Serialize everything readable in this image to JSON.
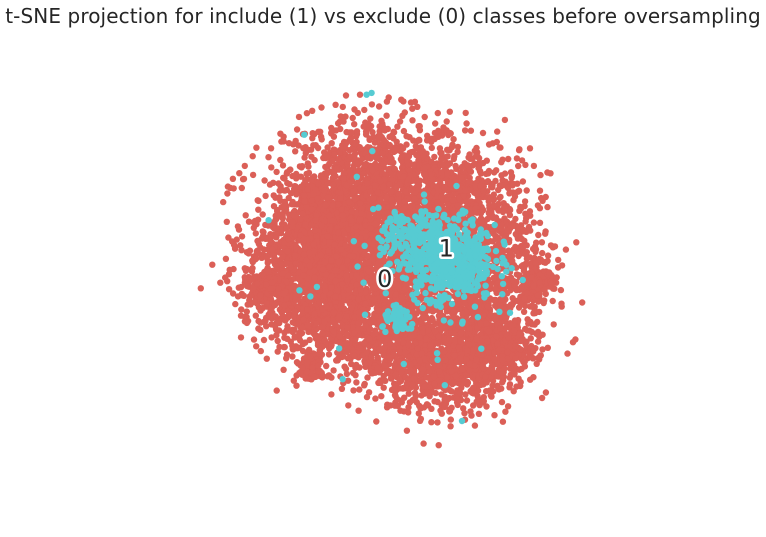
{
  "chart_data": {
    "type": "scatter",
    "title": "t-SNE projection for include (1) vs exclude (0) classes before oversampling",
    "xlabel": "",
    "ylabel": "",
    "axes_visible": false,
    "grid": false,
    "xlim": [
      -100,
      100
    ],
    "ylim": [
      -100,
      100
    ],
    "series": [
      {
        "label": "0",
        "color": "#db5f57",
        "clusters": [
          {
            "cx": -10,
            "cy": 45,
            "sx": 22,
            "sy": 18,
            "n": 1100
          },
          {
            "cx": -35,
            "cy": 20,
            "sx": 18,
            "sy": 16,
            "n": 900
          },
          {
            "cx": -45,
            "cy": -5,
            "sx": 15,
            "sy": 14,
            "n": 650
          },
          {
            "cx": 5,
            "cy": 5,
            "sx": 28,
            "sy": 22,
            "n": 1300
          },
          {
            "cx": 20,
            "cy": -40,
            "sx": 18,
            "sy": 12,
            "n": 900
          },
          {
            "cx": 45,
            "cy": -30,
            "sx": 12,
            "sy": 12,
            "n": 450
          },
          {
            "cx": 30,
            "cy": 40,
            "sx": 16,
            "sy": 14,
            "n": 500
          },
          {
            "cx": 45,
            "cy": 10,
            "sx": 14,
            "sy": 14,
            "n": 450
          },
          {
            "cx": -15,
            "cy": -20,
            "sx": 18,
            "sy": 14,
            "n": 600
          },
          {
            "cx": -60,
            "cy": -2,
            "sx": 5,
            "sy": 4,
            "n": 160
          },
          {
            "cx": 70,
            "cy": 0,
            "sx": 4,
            "sy": 6,
            "n": 120
          },
          {
            "cx": -42,
            "cy": -42,
            "sx": 4,
            "sy": 4,
            "n": 60
          },
          {
            "cx": -38,
            "cy": 38,
            "sx": 6,
            "sy": 6,
            "n": 90
          },
          {
            "cx": 55,
            "cy": -35,
            "sx": 6,
            "sy": 5,
            "n": 90
          }
        ]
      },
      {
        "label": "1",
        "color": "#56cbd2",
        "clusters": [
          {
            "cx": 26,
            "cy": 10,
            "sx": 11,
            "sy": 10,
            "n": 560
          },
          {
            "cx": 8,
            "cy": 22,
            "sx": 8,
            "sy": 6,
            "n": 110
          },
          {
            "cx": 2,
            "cy": -20,
            "sx": 4,
            "sy": 3,
            "n": 50
          },
          {
            "cx": 0,
            "cy": 0,
            "sx": 35,
            "sy": 35,
            "n": 45
          }
        ]
      }
    ],
    "annotations": [
      {
        "text": "0",
        "x": -5,
        "y": 0
      },
      {
        "text": "1",
        "x": 25,
        "y": 15
      }
    ]
  }
}
